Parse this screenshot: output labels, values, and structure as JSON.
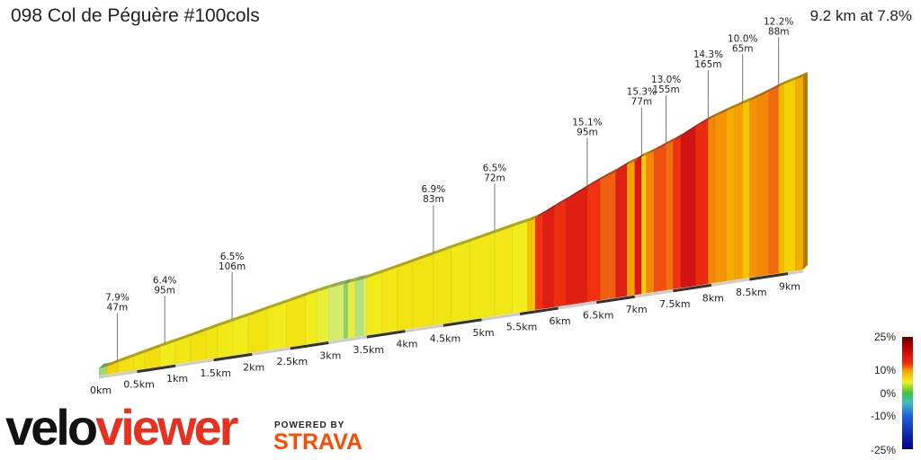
{
  "header": {
    "title": "098 Col de Péguère #100cols",
    "summary": "9.2 km at 7.8%"
  },
  "chart_data": {
    "type": "area",
    "title": "098 Col de Péguère #100cols",
    "xlabel": "",
    "ylabel": "",
    "x_unit": "km",
    "xlim": [
      0,
      9.2
    ],
    "x_ticks": [
      "0km",
      "0.5km",
      "1km",
      "1.5km",
      "2km",
      "2.5km",
      "3km",
      "3.5km",
      "4km",
      "4.5km",
      "5km",
      "5.5km",
      "6km",
      "6.5km",
      "7km",
      "7.5km",
      "8km",
      "8.5km",
      "9km"
    ],
    "segments_km_gradient": [
      [
        0.1,
        2
      ],
      [
        0.25,
        7.9
      ],
      [
        0.45,
        7
      ],
      [
        0.6,
        6.8
      ],
      [
        0.8,
        7.2
      ],
      [
        1.0,
        6.4
      ],
      [
        1.2,
        6.6
      ],
      [
        1.4,
        7
      ],
      [
        1.55,
        6.8
      ],
      [
        1.75,
        6.5
      ],
      [
        1.95,
        6.2
      ],
      [
        2.2,
        6.8
      ],
      [
        2.45,
        6.3
      ],
      [
        2.7,
        6.8
      ],
      [
        2.85,
        6.2
      ],
      [
        3.0,
        5.5
      ],
      [
        3.2,
        4
      ],
      [
        3.25,
        1.5
      ],
      [
        3.35,
        5
      ],
      [
        3.45,
        2.5
      ],
      [
        3.5,
        4.5
      ],
      [
        3.7,
        6.3
      ],
      [
        3.9,
        6.6
      ],
      [
        4.1,
        6.9
      ],
      [
        4.37,
        6.9
      ],
      [
        4.6,
        6.7
      ],
      [
        4.85,
        6.5
      ],
      [
        5.17,
        6.5
      ],
      [
        5.4,
        6.6
      ],
      [
        5.6,
        6.2
      ],
      [
        5.7,
        8.5
      ],
      [
        5.8,
        14
      ],
      [
        5.95,
        15.1
      ],
      [
        6.1,
        14.2
      ],
      [
        6.38,
        15.1
      ],
      [
        6.55,
        14
      ],
      [
        6.75,
        12.5
      ],
      [
        6.9,
        15
      ],
      [
        7.0,
        10
      ],
      [
        7.09,
        15.3
      ],
      [
        7.15,
        8
      ],
      [
        7.25,
        11
      ],
      [
        7.41,
        13
      ],
      [
        7.5,
        12
      ],
      [
        7.6,
        14
      ],
      [
        7.8,
        15.8
      ],
      [
        7.96,
        14.3
      ],
      [
        8.05,
        11
      ],
      [
        8.2,
        10.5
      ],
      [
        8.3,
        9.5
      ],
      [
        8.41,
        10
      ],
      [
        8.5,
        8.5
      ],
      [
        8.6,
        10.5
      ],
      [
        8.75,
        11
      ],
      [
        8.88,
        12.2
      ],
      [
        8.95,
        9
      ],
      [
        9.1,
        8
      ],
      [
        9.2,
        9.5
      ]
    ],
    "annotations": [
      {
        "km": 0.24,
        "gradient": "7.9%",
        "length": "47m"
      },
      {
        "km": 0.86,
        "gradient": "6.4%",
        "length": "95m"
      },
      {
        "km": 1.74,
        "gradient": "6.5%",
        "length": "106m"
      },
      {
        "km": 4.37,
        "gradient": "6.9%",
        "length": "83m"
      },
      {
        "km": 5.17,
        "gradient": "6.5%",
        "length": "72m"
      },
      {
        "km": 6.38,
        "gradient": "15.1%",
        "length": "95m"
      },
      {
        "km": 7.09,
        "gradient": "15.3%",
        "length": "77m"
      },
      {
        "km": 7.41,
        "gradient": "13.0%",
        "length": "155m"
      },
      {
        "km": 7.96,
        "gradient": "14.3%",
        "length": "165m"
      },
      {
        "km": 8.41,
        "gradient": "10.0%",
        "length": "65m"
      },
      {
        "km": 8.88,
        "gradient": "12.2%",
        "length": "88m"
      }
    ],
    "legend": {
      "labels": [
        "25%",
        "10%",
        "0%",
        "-10%",
        "-25%"
      ],
      "placement": "bottom-right"
    }
  },
  "branding": {
    "velo": "velo",
    "viewer": "viewer",
    "powered_by": "POWERED BY",
    "strava": "STRAVA",
    "strava_color": "#fc4c02",
    "viewer_color": "#e8301e"
  }
}
